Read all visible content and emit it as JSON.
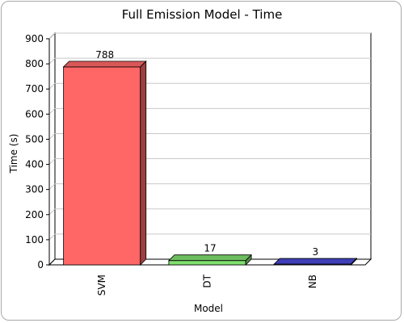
{
  "chart_data": {
    "type": "bar",
    "title": "Full Emission Model - Time",
    "xlabel": "Model",
    "ylabel": "Time (s)",
    "categories": [
      "SVM",
      "DT",
      "NB"
    ],
    "values": [
      788,
      17,
      3
    ],
    "data_labels": [
      "788",
      "17",
      "3"
    ],
    "colors": [
      "#ff6666",
      "#80e070",
      "#4a4ad8"
    ],
    "ylim": [
      0,
      900
    ],
    "yticks": [
      0,
      100,
      200,
      300,
      400,
      500,
      600,
      700,
      800,
      900
    ],
    "grid": true,
    "legend": "none"
  }
}
